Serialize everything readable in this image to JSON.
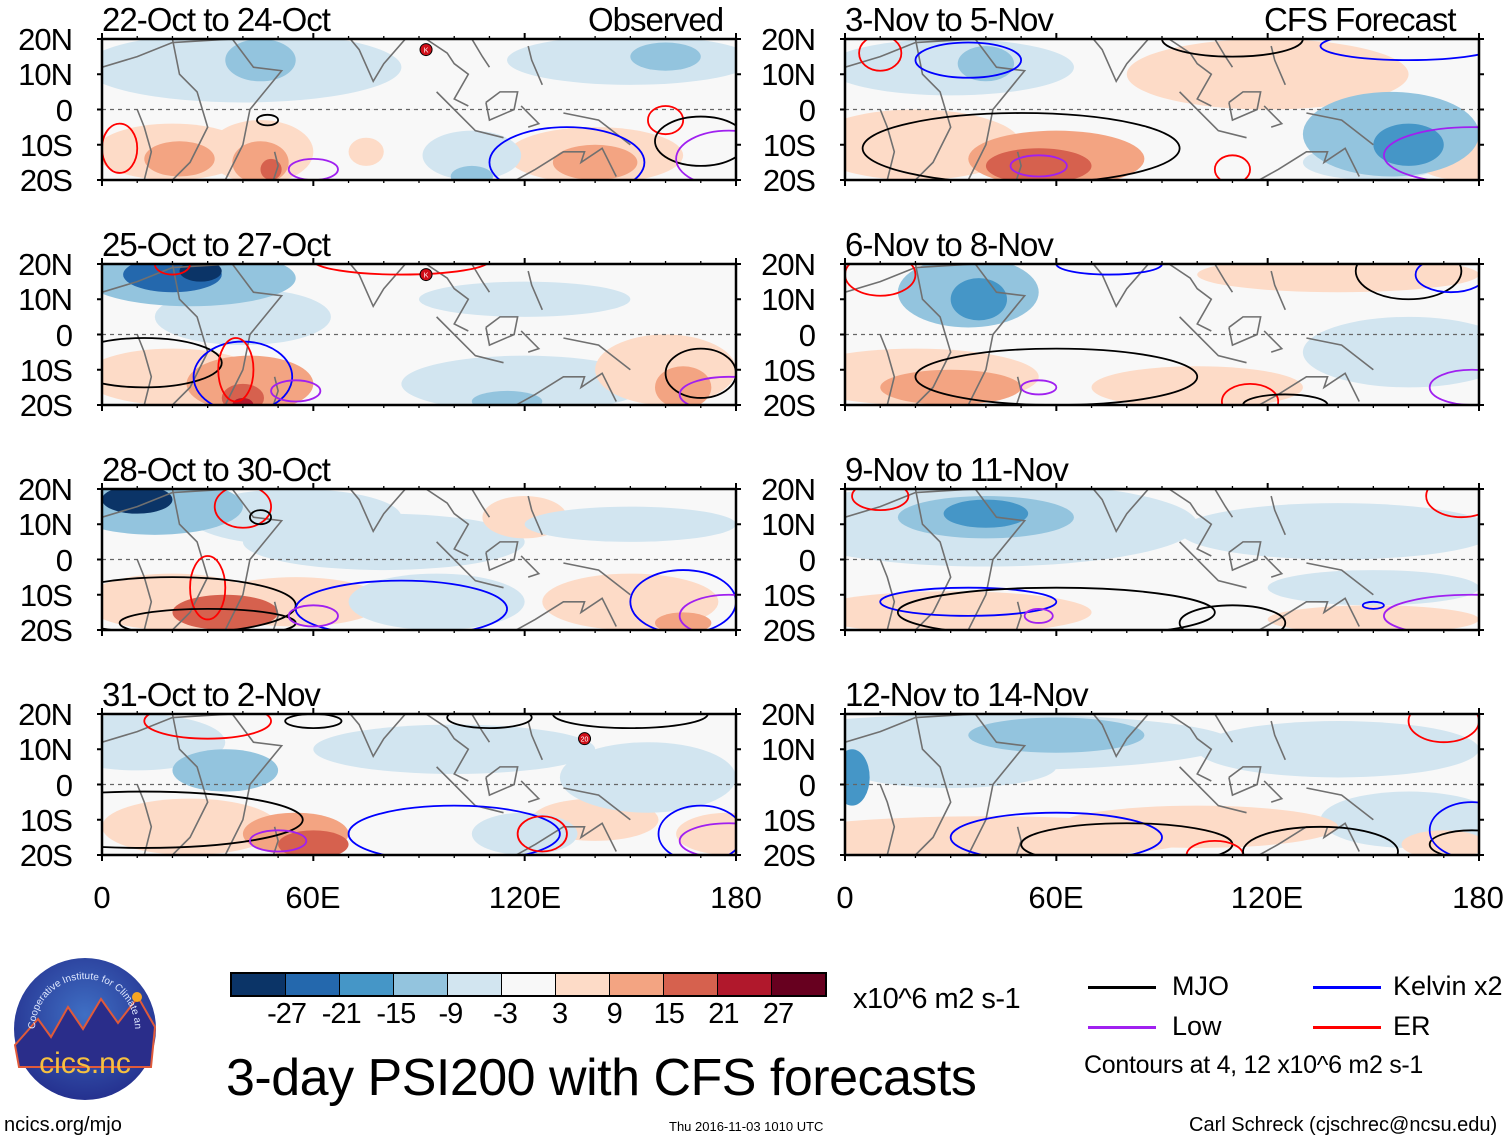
{
  "header": {
    "observed_label": "Observed",
    "forecast_label": "CFS Forecast"
  },
  "panels": {
    "observed": [
      {
        "title": "22-Oct to 24-Oct"
      },
      {
        "title": "25-Oct to 27-Oct"
      },
      {
        "title": "28-Oct to 30-Oct"
      },
      {
        "title": "31-Oct to 2-Nov"
      }
    ],
    "forecast": [
      {
        "title": "3-Nov to 5-Nov"
      },
      {
        "title": "6-Nov to 8-Nov"
      },
      {
        "title": "9-Nov to 11-Nov"
      },
      {
        "title": "12-Nov to 14-Nov"
      }
    ]
  },
  "axes": {
    "y_labels": [
      "20N",
      "10N",
      "0",
      "10S",
      "20S"
    ],
    "x_labels": [
      "0",
      "60E",
      "120E",
      "180"
    ]
  },
  "cyclones": [
    "K",
    "K",
    "20"
  ],
  "colorbar": {
    "colors": [
      "#0b3467",
      "#2468ad",
      "#4596c7",
      "#93c4de",
      "#d2e5f0",
      "#f8f8f8",
      "#fddbc7",
      "#f3a482",
      "#d6614e",
      "#b1182c",
      "#67001f"
    ],
    "labels": [
      "-27",
      "-21",
      "-15",
      "-9",
      "-3",
      "3",
      "9",
      "15",
      "21",
      "27"
    ],
    "units": "x10^6 m2 s-1"
  },
  "legend": {
    "items": [
      {
        "label": "MJO",
        "color": "#000000"
      },
      {
        "label": "Kelvin x2",
        "color": "#0000ff"
      },
      {
        "label": "Low",
        "color": "#a020f0"
      },
      {
        "label": "ER",
        "color": "#ff0000"
      }
    ],
    "note": "Contours at 4, 12 x10^6 m2 s-1"
  },
  "title": "3-day PSI200 with CFS forecasts",
  "logo": {
    "text": "cics.nc",
    "ring": "Cooperative Institute for Climate and Satellites"
  },
  "footer": {
    "url": "ncics.org/mjo",
    "timestamp": "Thu 2016-11-03 1010 UTC",
    "author": "Carl Schreck (cjschrec@ncsu.edu)"
  }
}
